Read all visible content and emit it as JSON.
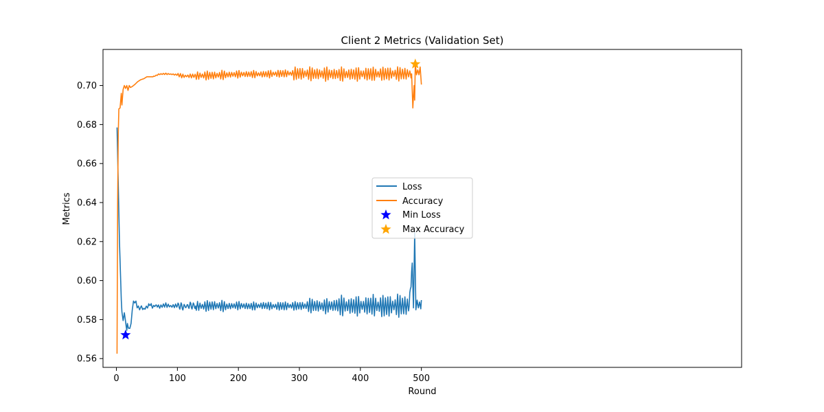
{
  "chart_data": {
    "type": "line",
    "title": "Client 2 Metrics (Validation Set)",
    "xlabel": "Round",
    "ylabel": "Metrics",
    "xlim": [
      -22,
      1025
    ],
    "ylim": [
      0.5555,
      0.7185
    ],
    "xticks": [
      0,
      100,
      200,
      300,
      400,
      500
    ],
    "yticks": [
      0.56,
      0.58,
      0.6,
      0.62,
      0.64,
      0.66,
      0.68,
      0.7
    ],
    "ytick_labels": [
      "0.56",
      "0.58",
      "0.60",
      "0.62",
      "0.64",
      "0.66",
      "0.68",
      "0.70"
    ],
    "grid": false,
    "legend_placement": "center",
    "series": [
      {
        "name": "Loss",
        "color": "#1f77b4",
        "points": [
          [
            1,
            0.6785
          ],
          [
            3,
            0.65
          ],
          [
            5,
            0.62
          ],
          [
            7,
            0.6
          ],
          [
            8,
            0.59
          ],
          [
            9,
            0.584
          ],
          [
            11,
            0.5795
          ],
          [
            13,
            0.5835
          ],
          [
            15,
            0.579
          ],
          [
            16,
            0.5765
          ],
          [
            17,
            0.5745
          ],
          [
            18,
            0.578
          ],
          [
            19,
            0.5765
          ],
          [
            20,
            0.5755
          ],
          [
            22,
            0.5755
          ],
          [
            24,
            0.578
          ],
          [
            26,
            0.585
          ],
          [
            28,
            0.5895
          ],
          [
            30,
            0.5885
          ],
          [
            32,
            0.5895
          ],
          [
            34,
            0.586
          ],
          [
            36,
            0.587
          ],
          [
            38,
            0.585
          ],
          [
            40,
            0.5865
          ],
          [
            45,
            0.5855
          ],
          [
            50,
            0.5865
          ],
          [
            55,
            0.5875
          ],
          [
            60,
            0.5865
          ],
          [
            65,
            0.5875
          ],
          [
            70,
            0.5865
          ],
          [
            80,
            0.5875
          ],
          [
            90,
            0.5868
          ],
          [
            100,
            0.5872
          ],
          [
            110,
            0.5865
          ],
          [
            120,
            0.5872
          ],
          [
            140,
            0.5868
          ],
          [
            160,
            0.5872
          ],
          [
            180,
            0.5868
          ],
          [
            200,
            0.5872
          ],
          [
            220,
            0.5868
          ],
          [
            240,
            0.5872
          ],
          [
            260,
            0.5868
          ],
          [
            280,
            0.587
          ],
          [
            300,
            0.587
          ],
          [
            320,
            0.5872
          ],
          [
            340,
            0.5868
          ],
          [
            360,
            0.5872
          ],
          [
            380,
            0.587
          ],
          [
            400,
            0.587
          ],
          [
            420,
            0.5872
          ],
          [
            440,
            0.5868
          ],
          [
            460,
            0.5872
          ],
          [
            480,
            0.587
          ],
          [
            485,
            0.609
          ],
          [
            487,
            0.586
          ],
          [
            489,
            0.6245
          ],
          [
            491,
            0.585
          ],
          [
            493,
            0.59
          ],
          [
            495,
            0.586
          ],
          [
            497,
            0.589
          ],
          [
            499,
            0.5855
          ],
          [
            500,
            0.59
          ]
        ],
        "oscillations": [
          {
            "from": 40,
            "to": 100,
            "amplitude": 0.0012,
            "period": 4
          },
          {
            "from": 100,
            "to": 130,
            "amplitude": 0.0022,
            "period": 5
          },
          {
            "from": 130,
            "to": 180,
            "amplitude": 0.003,
            "period": 4
          },
          {
            "from": 180,
            "to": 260,
            "amplitude": 0.0022,
            "period": 4
          },
          {
            "from": 260,
            "to": 310,
            "amplitude": 0.0025,
            "period": 4
          },
          {
            "from": 310,
            "to": 360,
            "amplitude": 0.004,
            "period": 4
          },
          {
            "from": 360,
            "to": 420,
            "amplitude": 0.0055,
            "period": 4
          },
          {
            "from": 420,
            "to": 484,
            "amplitude": 0.0065,
            "period": 4
          }
        ]
      },
      {
        "name": "Accuracy",
        "color": "#ff7f0e",
        "points": [
          [
            1,
            0.5625
          ],
          [
            2,
            0.64
          ],
          [
            3,
            0.675
          ],
          [
            4,
            0.688
          ],
          [
            6,
            0.6885
          ],
          [
            8,
            0.696
          ],
          [
            9,
            0.69
          ],
          [
            11,
            0.698
          ],
          [
            13,
            0.7
          ],
          [
            15,
            0.6985
          ],
          [
            17,
            0.7
          ],
          [
            19,
            0.6975
          ],
          [
            21,
            0.7
          ],
          [
            23,
            0.699
          ],
          [
            26,
            0.6995
          ],
          [
            30,
            0.7005
          ],
          [
            35,
            0.702
          ],
          [
            40,
            0.703
          ],
          [
            45,
            0.7035
          ],
          [
            50,
            0.7045
          ],
          [
            60,
            0.7045
          ],
          [
            70,
            0.7058
          ],
          [
            80,
            0.706
          ],
          [
            90,
            0.7058
          ],
          [
            100,
            0.7055
          ],
          [
            110,
            0.7048
          ],
          [
            130,
            0.705
          ],
          [
            160,
            0.7052
          ],
          [
            200,
            0.7058
          ],
          [
            240,
            0.7058
          ],
          [
            280,
            0.7062
          ],
          [
            320,
            0.706
          ],
          [
            360,
            0.7058
          ],
          [
            400,
            0.7058
          ],
          [
            440,
            0.706
          ],
          [
            480,
            0.706
          ],
          [
            484,
            0.706
          ],
          [
            486,
            0.6885
          ],
          [
            488,
            0.7
          ],
          [
            489,
            0.6925
          ],
          [
            490,
            0.711
          ],
          [
            492,
            0.7055
          ],
          [
            494,
            0.708
          ],
          [
            496,
            0.7055
          ],
          [
            498,
            0.7095
          ],
          [
            500,
            0.7005
          ]
        ],
        "oscillations": [
          {
            "from": 60,
            "to": 100,
            "amplitude": 0.0004,
            "period": 4
          },
          {
            "from": 100,
            "to": 130,
            "amplitude": 0.0012,
            "period": 4
          },
          {
            "from": 130,
            "to": 180,
            "amplitude": 0.0025,
            "period": 4
          },
          {
            "from": 180,
            "to": 250,
            "amplitude": 0.002,
            "period": 4
          },
          {
            "from": 250,
            "to": 290,
            "amplitude": 0.0022,
            "period": 4
          },
          {
            "from": 290,
            "to": 400,
            "amplitude": 0.0038,
            "period": 4
          },
          {
            "from": 400,
            "to": 484,
            "amplitude": 0.004,
            "period": 4
          }
        ]
      }
    ],
    "markers": [
      {
        "name": "Min Loss",
        "x": 15,
        "y": 0.5721,
        "color": "#0000ff"
      },
      {
        "name": "Max Accuracy",
        "x": 490,
        "y": 0.711,
        "color": "#ffa500"
      }
    ]
  }
}
